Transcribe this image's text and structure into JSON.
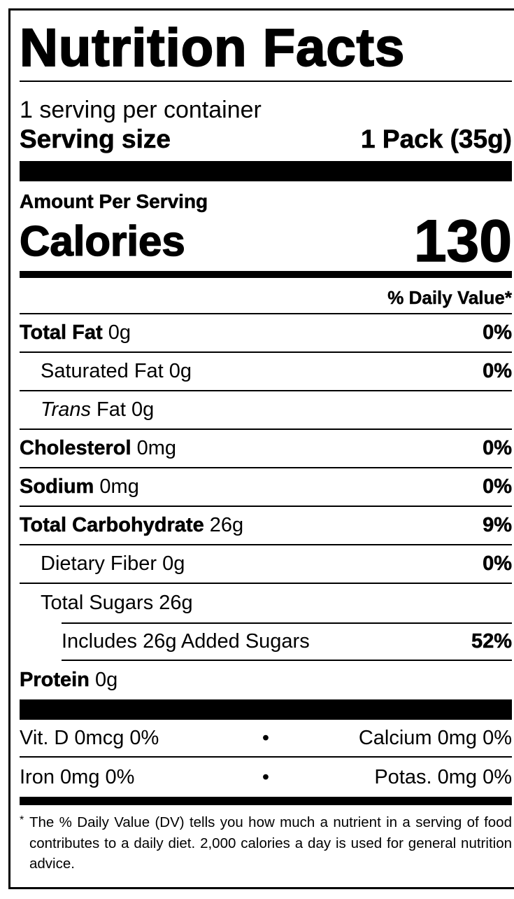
{
  "title": "Nutrition Facts",
  "servings_per_container": "1 serving per container",
  "serving_size": {
    "label": "Serving size",
    "value": "1 Pack (35g)"
  },
  "amount_per_serving": "Amount Per Serving",
  "calories": {
    "label": "Calories",
    "value": "130"
  },
  "daily_value_header": "% Daily Value*",
  "nutrients": [
    {
      "name": "Total Fat",
      "amount": "0g",
      "dv": "0%"
    },
    {
      "name": "Saturated Fat",
      "amount": "0g",
      "dv": "0%"
    },
    {
      "name": "Trans",
      "name_suffix": "Fat",
      "amount": "0g",
      "dv": ""
    },
    {
      "name": "Cholesterol",
      "amount": "0mg",
      "dv": "0%"
    },
    {
      "name": "Sodium",
      "amount": "0mg",
      "dv": "0%"
    },
    {
      "name": "Total Carbohydrate",
      "amount": "26g",
      "dv": "9%"
    },
    {
      "name": "Dietary Fiber",
      "amount": "0g",
      "dv": "0%"
    },
    {
      "name": "Total Sugars",
      "amount": "26g",
      "dv": ""
    },
    {
      "name": "Includes 26g Added Sugars",
      "amount": "",
      "dv": "52%"
    },
    {
      "name": "Protein",
      "amount": "0g",
      "dv": ""
    }
  ],
  "vitamins": [
    {
      "left": "Vit. D 0mcg 0%",
      "separator": "•",
      "right": "Calcium 0mg 0%"
    },
    {
      "left": "Iron 0mg 0%",
      "separator": "•",
      "right": "Potas. 0mg 0%"
    }
  ],
  "footnote": {
    "asterisk": "*",
    "text": "The % Daily Value (DV) tells you how much a nutrient in a serving of food contributes to a daily diet. 2,000 calories a day is used for general nutrition advice."
  }
}
